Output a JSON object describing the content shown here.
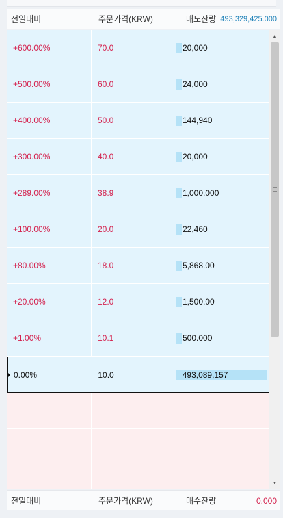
{
  "header": {
    "col1": "전일대비",
    "col2": "주문가격(KRW)",
    "col3": "매도잔량",
    "total": "493,329,425.000"
  },
  "asks": [
    {
      "change": "+600.00%",
      "price": "70.0",
      "qty": "20,000",
      "bar_fraction": 0.06
    },
    {
      "change": "+500.00%",
      "price": "60.0",
      "qty": "24,000",
      "bar_fraction": 0.06
    },
    {
      "change": "+400.00%",
      "price": "50.0",
      "qty": "144,940",
      "bar_fraction": 0.06
    },
    {
      "change": "+300.00%",
      "price": "40.0",
      "qty": "20,000",
      "bar_fraction": 0.06
    },
    {
      "change": "+289.00%",
      "price": "38.9",
      "qty": "1,000.000",
      "bar_fraction": 0.06
    },
    {
      "change": "+100.00%",
      "price": "20.0",
      "qty": "22,460",
      "bar_fraction": 0.06
    },
    {
      "change": "+80.00%",
      "price": "18.0",
      "qty": "5,868.00",
      "bar_fraction": 0.06
    },
    {
      "change": "+20.00%",
      "price": "12.0",
      "qty": "1,500.00",
      "bar_fraction": 0.06
    },
    {
      "change": "+1.00%",
      "price": "10.1",
      "qty": "500.000",
      "bar_fraction": 0.06
    }
  ],
  "current": {
    "change": "0.00%",
    "price": "10.0",
    "qty": "493,089,157",
    "bar_fraction": 1.0
  },
  "footer": {
    "col1": "전일대비",
    "col2": "주문가격(KRW)",
    "col3": "매수잔량",
    "total": "0.000"
  },
  "colors": {
    "ask_bg": "#e3f4fd",
    "bid_bg": "#fdeeef",
    "up_text": "#d4224e",
    "total_blue": "#1a7fb7",
    "bar": "#b5e2f7"
  }
}
